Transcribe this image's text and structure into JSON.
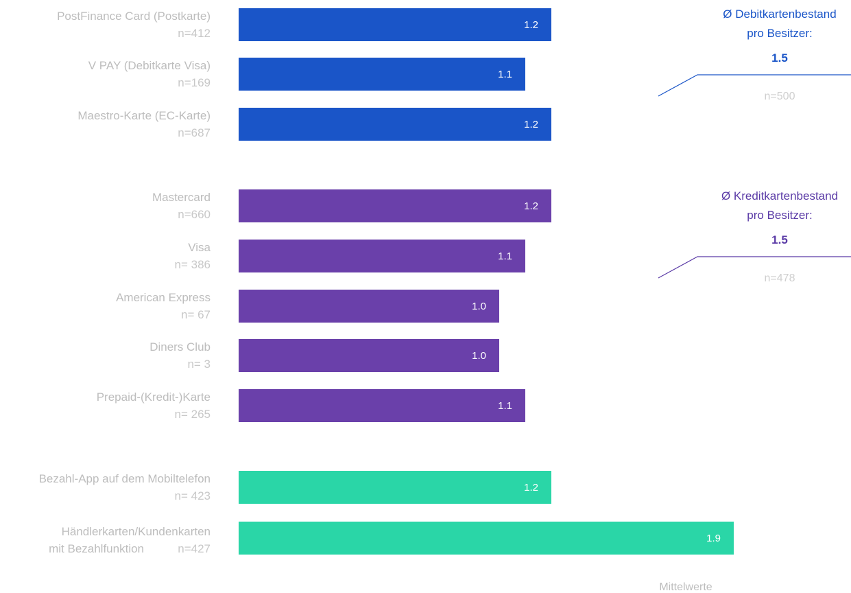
{
  "chart_data": {
    "type": "bar",
    "orientation": "horizontal",
    "unit_label": "Mittelwerte",
    "colors": {
      "debit": "#1a55c8",
      "credit": "#6a40aa",
      "other": "#2ad6a7"
    },
    "groups": [
      {
        "key": "debit",
        "items": [
          {
            "label": "PostFinance Card (Postkarte)",
            "n": "n=412",
            "value": 1.2
          },
          {
            "label": "V PAY (Debitkarte Visa)",
            "n": "n=169",
            "value": 1.1
          },
          {
            "label": "Maestro-Karte (EC-Karte)",
            "n": "n=687",
            "value": 1.2
          }
        ],
        "summary": {
          "title_lines": [
            "Ø Debitkartenbestand",
            "pro Besitzer:"
          ],
          "value": "1.5",
          "n": "n=500",
          "color": "#1a55c8"
        }
      },
      {
        "key": "credit",
        "items": [
          {
            "label": "Mastercard",
            "n": "n=660",
            "value": 1.2
          },
          {
            "label": "Visa",
            "n": "n= 386",
            "value": 1.1
          },
          {
            "label": "American Express",
            "n": "n= 67",
            "value": 1.0
          },
          {
            "label": "Diners Club",
            "n": "n= 3",
            "value": 1.0
          },
          {
            "label": "Prepaid-(Kredit-)Karte",
            "n": "n= 265",
            "value": 1.1
          }
        ],
        "summary": {
          "title_lines": [
            "Ø Kreditkartenbestand",
            "pro Besitzer:"
          ],
          "value": "1.5",
          "n": "n=478",
          "color": "#5a3aa6"
        }
      },
      {
        "key": "other",
        "items": [
          {
            "label": "Bezahl-App auf dem Mobiltelefon",
            "n": "n= 423",
            "value": 1.2
          },
          {
            "label_lines": [
              "Händlerkarten/Kundenkarten",
              "mit Bezahlfunktion"
            ],
            "n": "n=427",
            "value": 1.9
          }
        ]
      }
    ]
  }
}
